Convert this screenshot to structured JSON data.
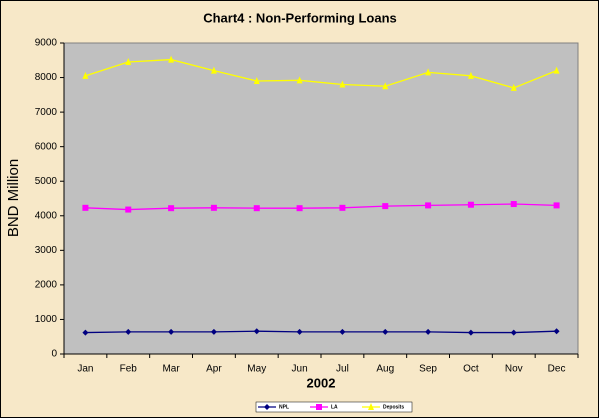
{
  "chart_data": {
    "type": "line",
    "title": "Chart4 : Non-Performing Loans",
    "xlabel": "2002",
    "ylabel": "BND Million",
    "categories": [
      "Jan",
      "Feb",
      "Mar",
      "Apr",
      "May",
      "Jun",
      "Jul",
      "Aug",
      "Sep",
      "Oct",
      "Nov",
      "Dec"
    ],
    "series": [
      {
        "name": "NPL",
        "color": "#000080",
        "marker": "diamond",
        "values": [
          620,
          640,
          640,
          640,
          660,
          640,
          640,
          640,
          640,
          620,
          620,
          660
        ]
      },
      {
        "name": "LA",
        "color": "#ff00ff",
        "marker": "square",
        "values": [
          4230,
          4180,
          4220,
          4230,
          4220,
          4220,
          4230,
          4280,
          4300,
          4320,
          4340,
          4300
        ]
      },
      {
        "name": "Deposits",
        "color": "#ffff00",
        "marker": "triangle",
        "values": [
          8050,
          8450,
          8520,
          8200,
          7900,
          7920,
          7800,
          7750,
          8150,
          8050,
          7700,
          8200
        ]
      }
    ],
    "ylim": [
      0,
      9000
    ],
    "yticks": [
      0,
      1000,
      2000,
      3000,
      4000,
      5000,
      6000,
      7000,
      8000,
      9000
    ],
    "grid": false,
    "legend": "bottom"
  }
}
